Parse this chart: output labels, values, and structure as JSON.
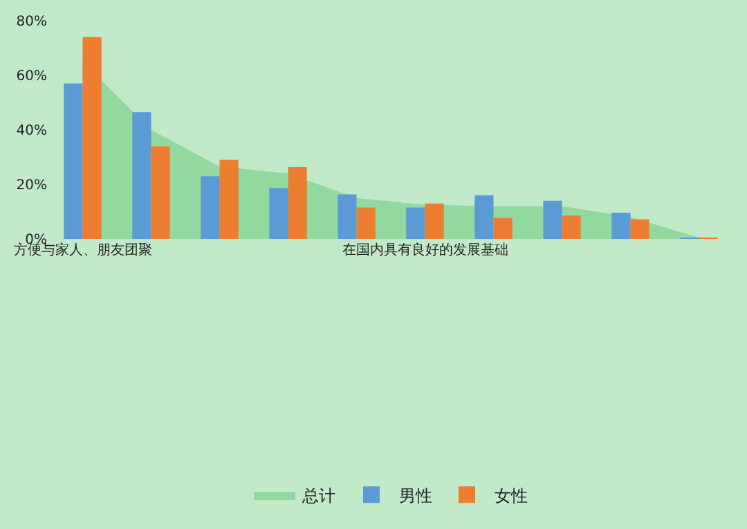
{
  "chart_data": {
    "type": "bar",
    "categories": [
      "方便与家人、朋友团聚",
      null,
      null,
      null,
      null,
      "在国内具有良好的发展基础",
      null,
      null,
      null,
      null
    ],
    "series": [
      {
        "name": "总计",
        "type": "area",
        "color": "#92d9a0",
        "values": [
          65,
          40,
          26.5,
          24,
          15,
          12.5,
          12,
          12,
          8,
          0.5
        ]
      },
      {
        "name": "男性",
        "color": "#5b9bd5",
        "values": [
          57,
          46.5,
          23,
          18.7,
          16.3,
          11.5,
          16,
          14,
          9.6,
          0.5
        ]
      },
      {
        "name": "女性",
        "color": "#ed7d31",
        "values": [
          74,
          34,
          29,
          26.3,
          11.5,
          13,
          7.7,
          8.6,
          7.2,
          0.5
        ]
      }
    ],
    "ylim": [
      0,
      80
    ],
    "yticks": [
      {
        "value": 0,
        "label": "0%"
      },
      {
        "value": 20,
        "label": "20%"
      },
      {
        "value": 40,
        "label": "40%"
      },
      {
        "value": 60,
        "label": "60%"
      },
      {
        "value": 80,
        "label": "80%"
      }
    ],
    "grid": false,
    "legend": "bottom"
  }
}
